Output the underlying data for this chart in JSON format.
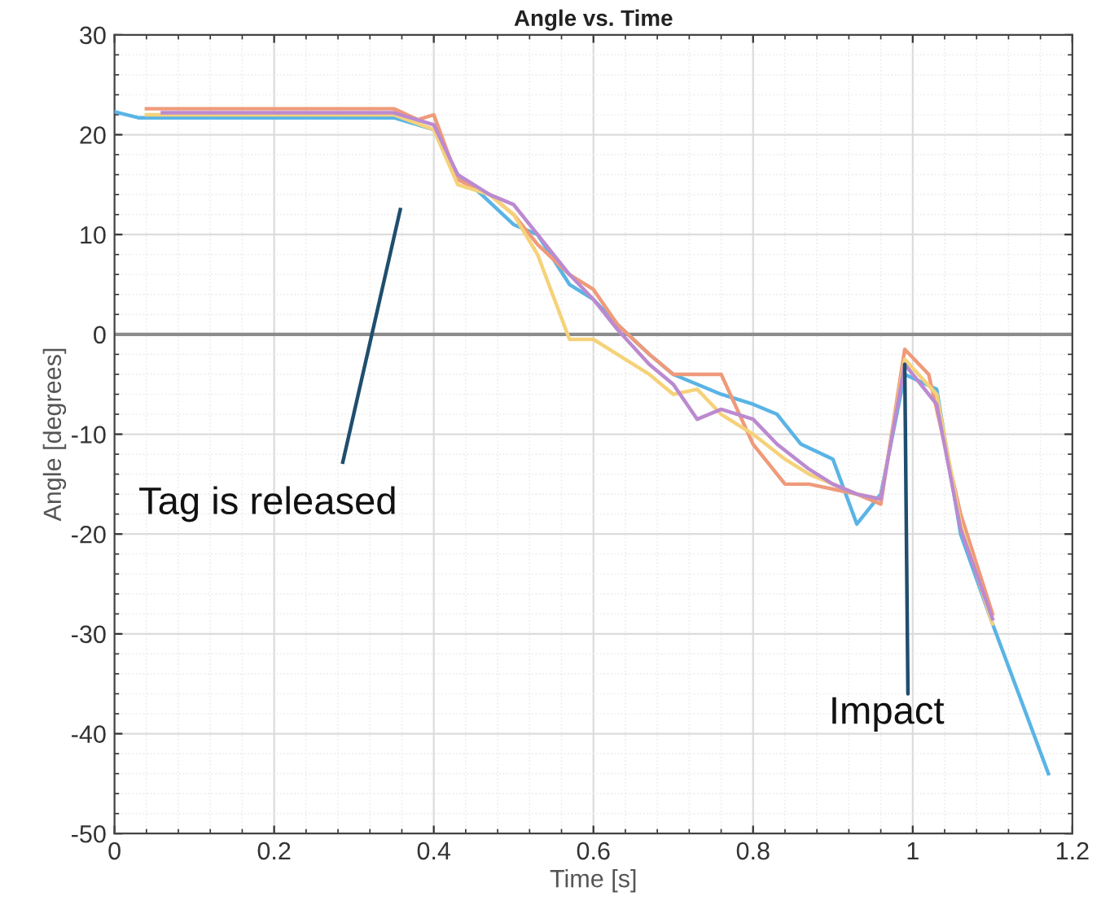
{
  "chart_data": {
    "type": "line",
    "title": "Angle vs. Time",
    "xlabel": "Time [s]",
    "ylabel": "Angle [degrees]",
    "xlim": [
      0,
      1.2
    ],
    "xticks": [
      0,
      0.2,
      0.4,
      0.6,
      0.8,
      1,
      1.2
    ],
    "ylim": [
      -50,
      30
    ],
    "yticks": [
      -50,
      -40,
      -30,
      -20,
      -10,
      0,
      10,
      20,
      30
    ],
    "grid": true,
    "legend": false,
    "marker": "none",
    "line_style": "solid",
    "ref_lines": [
      {
        "axis": "y",
        "value": 0,
        "color": "#8c8c8c"
      }
    ],
    "annotations": [
      "Tag is released",
      {
        "text": "Impact",
        "x": 0.99,
        "y": -3
      }
    ],
    "series": [
      {
        "color": "#5ab4e5",
        "x": [
          0,
          0.03,
          0.35,
          0.38,
          0.4,
          0.43,
          0.46,
          0.5,
          0.53,
          0.57,
          0.6,
          0.63,
          0.67,
          0.7,
          0.73,
          0.76,
          0.8,
          0.83,
          0.86,
          0.9,
          0.93,
          0.96,
          0.99,
          1.03,
          1.06,
          1.1,
          1.17
        ],
        "values": [
          22.3,
          21.7,
          21.7,
          21,
          20.5,
          16,
          14,
          11,
          10,
          5,
          3.5,
          1,
          -2,
          -4,
          -5,
          -6,
          -7,
          -8,
          -11,
          -12.5,
          -19,
          -16,
          -4,
          -5.5,
          -20,
          -29,
          -44
        ]
      },
      {
        "color": "#ef9a7a",
        "x": [
          0.04,
          0.35,
          0.38,
          0.4,
          0.43,
          0.47,
          0.5,
          0.53,
          0.57,
          0.6,
          0.63,
          0.67,
          0.7,
          0.73,
          0.76,
          0.8,
          0.84,
          0.87,
          0.9,
          0.93,
          0.96,
          0.99,
          1.02,
          1.06,
          1.1
        ],
        "values": [
          22.6,
          22.6,
          21.5,
          22,
          15.5,
          14,
          12,
          9,
          6,
          4.5,
          1,
          -2,
          -4,
          -4,
          -4,
          -11,
          -15,
          -15,
          -15.5,
          -16,
          -17,
          -1.5,
          -4,
          -18,
          -28
        ]
      },
      {
        "color": "#f5d27a",
        "x": [
          0.04,
          0.35,
          0.4,
          0.43,
          0.47,
          0.5,
          0.53,
          0.57,
          0.6,
          0.63,
          0.67,
          0.7,
          0.73,
          0.76,
          0.8,
          0.84,
          0.87,
          0.9,
          0.93,
          0.96,
          0.99,
          1.03,
          1.06,
          1.1
        ],
        "values": [
          22,
          22,
          20.5,
          15,
          14,
          12,
          8,
          -0.5,
          -0.5,
          -2,
          -4,
          -6,
          -5.5,
          -8,
          -10,
          -12.5,
          -14,
          -15,
          -16,
          -16.5,
          -2.5,
          -6,
          -19,
          -29
        ]
      },
      {
        "color": "#bb8ad0",
        "x": [
          0.06,
          0.35,
          0.4,
          0.43,
          0.47,
          0.5,
          0.53,
          0.57,
          0.6,
          0.63,
          0.67,
          0.7,
          0.73,
          0.76,
          0.8,
          0.83,
          0.87,
          0.9,
          0.93,
          0.96,
          0.99,
          1.03,
          1.06,
          1.1
        ],
        "values": [
          22.2,
          22.2,
          21,
          16,
          14,
          13,
          10,
          6,
          3.5,
          0.5,
          -3,
          -5,
          -8.5,
          -7.5,
          -8.5,
          -11,
          -13.5,
          -15,
          -16,
          -16.5,
          -3,
          -7,
          -19.5,
          -28.5
        ]
      }
    ]
  }
}
